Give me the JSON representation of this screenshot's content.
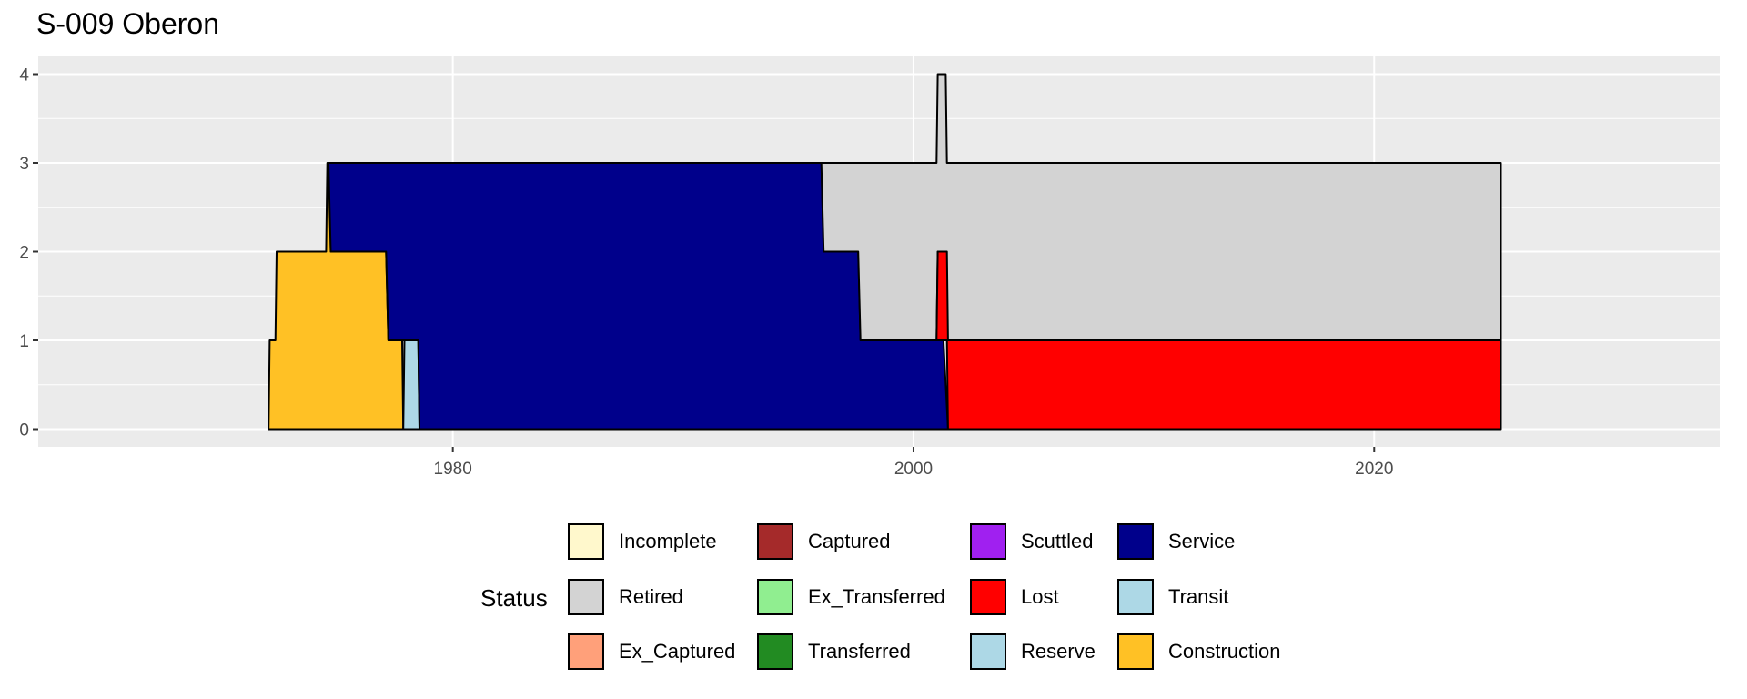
{
  "chart_data": {
    "type": "area",
    "title": "S-009 Oberon",
    "xlabel": "",
    "ylabel": "",
    "xlim": [
      1962,
      2035
    ],
    "ylim": [
      -0.2,
      4.2
    ],
    "x_ticks": [
      1980,
      2000,
      2020
    ],
    "y_ticks": [
      0,
      1,
      2,
      3,
      4
    ],
    "grid": true,
    "legend_title": "Status",
    "legend_position": "bottom",
    "legend": [
      {
        "label": "Incomplete",
        "color": "#FFF8CC"
      },
      {
        "label": "Retired",
        "color": "#D3D3D3"
      },
      {
        "label": "Ex_Captured",
        "color": "#FFA07A"
      },
      {
        "label": "Captured",
        "color": "#A52A2A"
      },
      {
        "label": "Ex_Transferred",
        "color": "#90EE90"
      },
      {
        "label": "Transferred",
        "color": "#228B22"
      },
      {
        "label": "Scuttled",
        "color": "#A020F0"
      },
      {
        "label": "Lost",
        "color": "#FF0000"
      },
      {
        "label": "Reserve",
        "color": "#ADD8E6"
      },
      {
        "label": "Service",
        "color": "#00008B"
      },
      {
        "label": "Transit",
        "color": "#ADD8E6"
      },
      {
        "label": "Construction",
        "color": "#FFC125"
      }
    ],
    "series": [
      {
        "name": "Construction",
        "color": "#FFC125",
        "points": [
          [
            1972.0,
            0,
            0
          ],
          [
            1972.05,
            0,
            1
          ],
          [
            1972.3,
            0,
            1
          ],
          [
            1972.35,
            0,
            2
          ],
          [
            1974.5,
            0,
            2
          ],
          [
            1974.55,
            0,
            3
          ],
          [
            1974.65,
            0,
            3
          ],
          [
            1974.7,
            0,
            2
          ],
          [
            1977.1,
            0,
            2
          ],
          [
            1977.2,
            0,
            1
          ],
          [
            1977.8,
            0,
            1
          ],
          [
            1977.85,
            0,
            0
          ]
        ]
      },
      {
        "name": "Transit",
        "color": "#ADD8E6",
        "points": [
          [
            1977.85,
            0,
            0
          ],
          [
            1977.9,
            0,
            1
          ],
          [
            1978.5,
            0,
            1
          ],
          [
            1978.55,
            0,
            0
          ]
        ]
      },
      {
        "name": "Service",
        "color": "#00008B",
        "points": [
          [
            1974.6,
            3,
            3
          ],
          [
            1974.7,
            2,
            3
          ],
          [
            1977.1,
            2,
            3
          ],
          [
            1977.2,
            1,
            3
          ],
          [
            1977.85,
            1,
            3
          ],
          [
            1977.9,
            1,
            3
          ],
          [
            1978.5,
            1,
            3
          ],
          [
            1978.55,
            0,
            3
          ],
          [
            1996.0,
            0,
            3
          ],
          [
            1996.1,
            0,
            2
          ],
          [
            1997.6,
            0,
            2
          ],
          [
            1997.7,
            0,
            1
          ],
          [
            2001.3,
            0,
            1
          ],
          [
            2001.5,
            0,
            0
          ]
        ]
      },
      {
        "name": "Retired",
        "color": "#D3D3D3",
        "points": [
          [
            1996.0,
            3,
            3
          ],
          [
            1996.1,
            2,
            3
          ],
          [
            1997.6,
            2,
            3
          ],
          [
            1997.7,
            1,
            3
          ],
          [
            2001.0,
            1,
            3
          ],
          [
            2001.05,
            2,
            4
          ],
          [
            2001.4,
            2,
            4
          ],
          [
            2001.45,
            1,
            3
          ],
          [
            2001.5,
            1,
            3
          ],
          [
            2025.5,
            1,
            3
          ]
        ]
      },
      {
        "name": "Lost",
        "color": "#FF0000",
        "points": [
          [
            2001.0,
            1,
            1
          ],
          [
            2001.05,
            1,
            2
          ],
          [
            2001.45,
            1,
            2
          ],
          [
            2001.5,
            0,
            1
          ],
          [
            2025.5,
            0,
            1
          ]
        ]
      }
    ]
  }
}
